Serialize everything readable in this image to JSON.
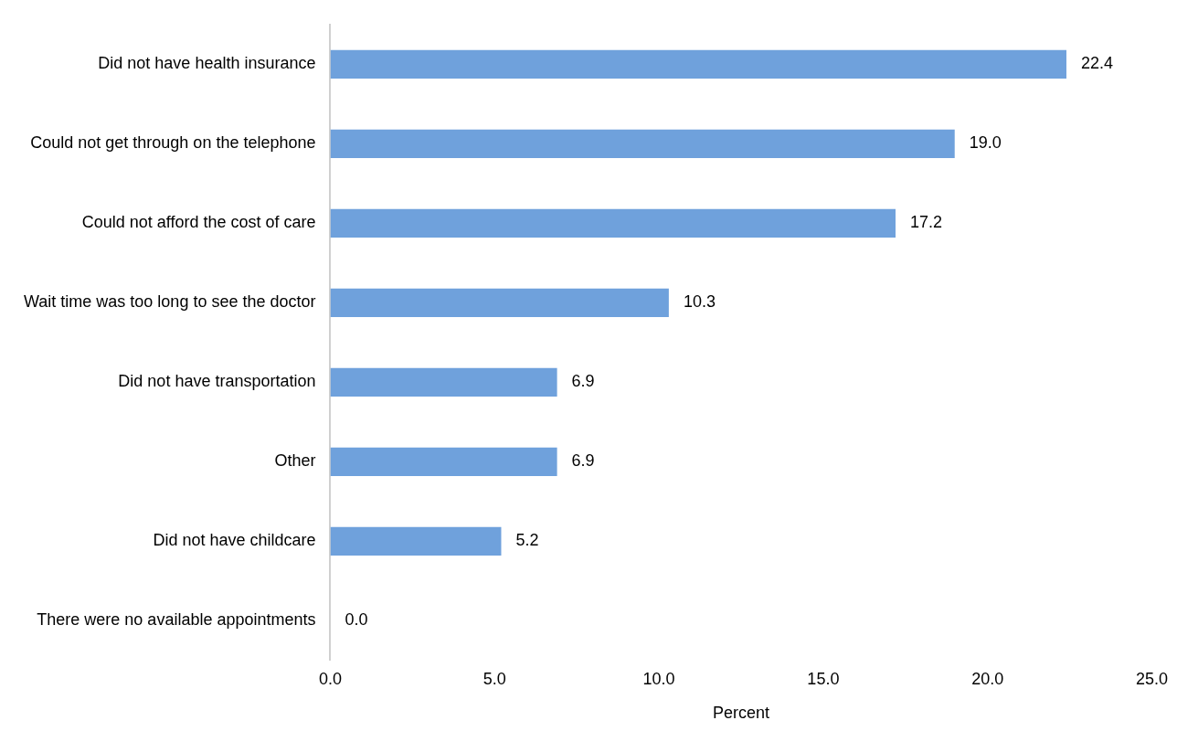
{
  "chart_data": {
    "type": "bar",
    "orientation": "horizontal",
    "xlabel": "Percent",
    "categories": [
      "Did not have health insurance",
      "Could not get through on the telephone",
      "Could not afford the cost of care",
      "Wait time was too long to see the doctor",
      "Did not have transportation",
      "Other",
      "Did not have childcare",
      "There were no available appointments"
    ],
    "values": [
      22.4,
      19.0,
      17.2,
      10.3,
      6.9,
      6.9,
      5.2,
      0.0
    ],
    "value_labels": [
      "22.4",
      "19.0",
      "17.2",
      "10.3",
      "6.9",
      "6.9",
      "5.2",
      "0.0"
    ],
    "color": "#6fa1dc",
    "xlim": [
      0,
      25
    ],
    "xticks": [
      {
        "value": 0,
        "label": "0.0"
      },
      {
        "value": 5,
        "label": "5.0"
      },
      {
        "value": 10,
        "label": "10.0"
      },
      {
        "value": 15,
        "label": "15.0"
      },
      {
        "value": 20,
        "label": "20.0"
      },
      {
        "value": 25,
        "label": "25.0"
      }
    ],
    "grid": false,
    "legend": false
  }
}
